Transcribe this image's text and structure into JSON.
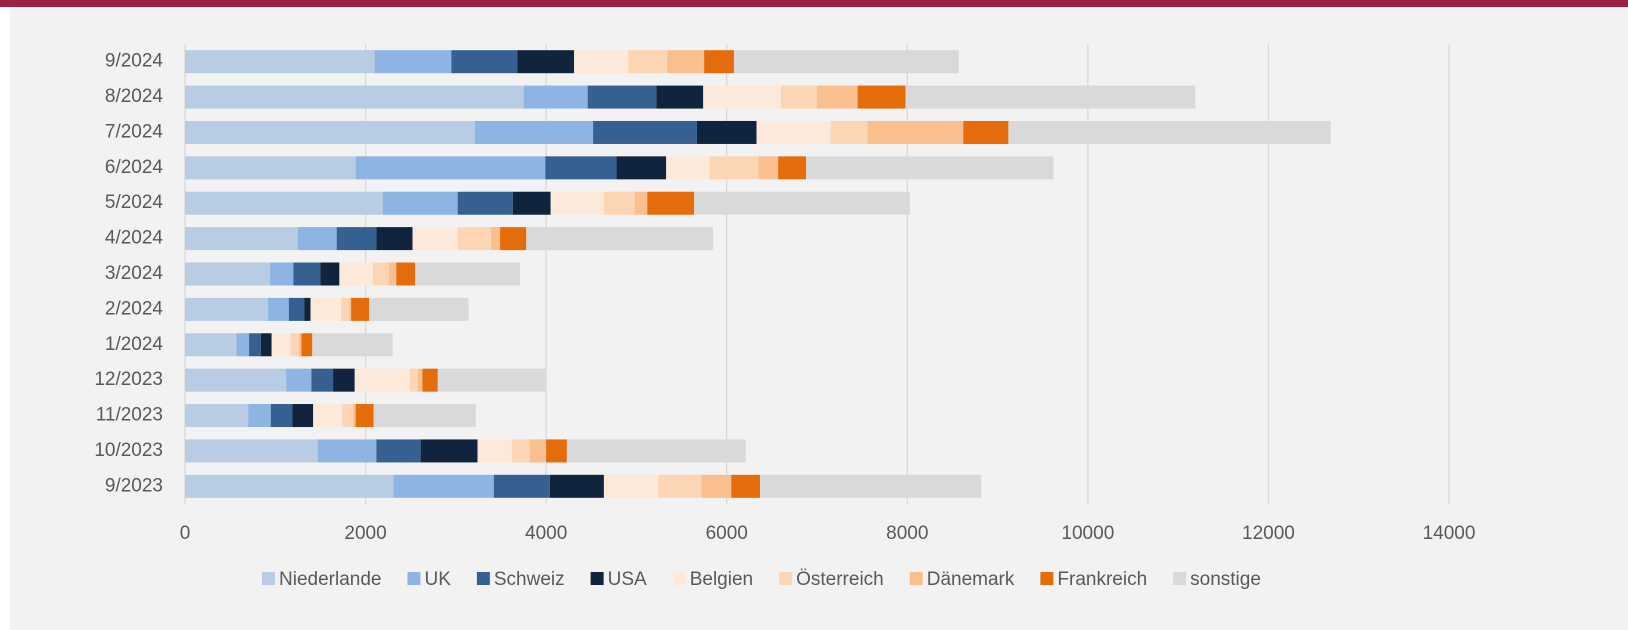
{
  "chart_data": {
    "type": "stacked-barh",
    "categories": [
      "9/2024",
      "8/2024",
      "7/2024",
      "6/2024",
      "5/2024",
      "4/2024",
      "3/2024",
      "2/2024",
      "1/2024",
      "12/2023",
      "11/2023",
      "10/2023",
      "9/2023"
    ],
    "series": [
      {
        "name": "Niederlande",
        "color": "#b8cce4",
        "values": [
          2100,
          3750,
          3210,
          1890,
          2190,
          1250,
          940,
          920,
          570,
          1120,
          700,
          1470,
          2310
        ]
      },
      {
        "name": "UK",
        "color": "#8db4e2",
        "values": [
          850,
          710,
          1310,
          2100,
          830,
          430,
          260,
          230,
          140,
          280,
          250,
          650,
          1110
        ]
      },
      {
        "name": "Schweiz",
        "color": "#366092",
        "values": [
          730,
          760,
          1150,
          790,
          610,
          440,
          300,
          170,
          130,
          240,
          240,
          490,
          620
        ]
      },
      {
        "name": "USA",
        "color": "#10243e",
        "values": [
          630,
          520,
          660,
          550,
          420,
          400,
          210,
          70,
          120,
          240,
          230,
          630,
          600
        ]
      },
      {
        "name": "Belgien",
        "color": "#fde9d9",
        "values": [
          600,
          860,
          820,
          480,
          590,
          500,
          370,
          340,
          210,
          610,
          320,
          380,
          600
        ]
      },
      {
        "name": "Österreich",
        "color": "#fcd5b4",
        "values": [
          430,
          400,
          410,
          540,
          340,
          370,
          180,
          90,
          90,
          90,
          120,
          200,
          480
        ]
      },
      {
        "name": "Dänemark",
        "color": "#fabf8f",
        "values": [
          410,
          450,
          1060,
          220,
          140,
          100,
          80,
          20,
          30,
          50,
          30,
          180,
          330
        ]
      },
      {
        "name": "Frankreich",
        "color": "#e46c0a",
        "values": [
          330,
          530,
          500,
          310,
          520,
          290,
          210,
          200,
          120,
          170,
          200,
          230,
          320
        ]
      },
      {
        "name": "sonstige",
        "color": "#d9d9d9",
        "values": [
          2490,
          3210,
          3570,
          2740,
          2390,
          2070,
          1160,
          1100,
          890,
          1190,
          1130,
          1980,
          2450
        ]
      }
    ],
    "xlim": [
      0,
      14000
    ],
    "xticks": [
      0,
      2000,
      4000,
      6000,
      8000,
      10000,
      12000,
      14000
    ],
    "grid": true,
    "legend": "bottom"
  }
}
